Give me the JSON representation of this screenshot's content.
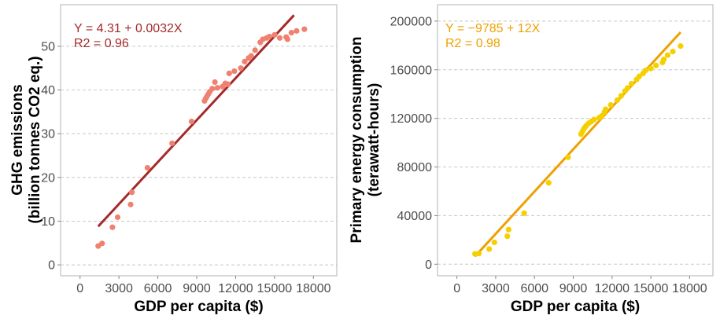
{
  "chart_data": [
    {
      "type": "scatter",
      "xlabel": "GDP per capita ($)",
      "ylabel": [
        "GHG emissions",
        "(billion tonnes CO2 eq.)"
      ],
      "xlim": [
        -1500,
        19800
      ],
      "ylim": [
        -2.5,
        59.5
      ],
      "xticks": [
        0,
        3000,
        6000,
        9000,
        12000,
        15000,
        18000
      ],
      "xtick_labels": [
        "0",
        "3000",
        "6000",
        "9000",
        "12000",
        "15000",
        "18000"
      ],
      "yticks": [
        0,
        10,
        20,
        30,
        40,
        50
      ],
      "ytick_labels": [
        "0",
        "10",
        "20",
        "30",
        "40",
        "50"
      ],
      "grid": "horizontal-dashed",
      "point_color": "#F08070",
      "line_color": "#A52A2A",
      "equation": "Y = 4.31 + 0.0032X",
      "r2": "R2 = 0.96",
      "fit": {
        "intercept": 4.31,
        "slope": 0.0032,
        "x_range": [
          1400,
          16500
        ]
      },
      "points": [
        [
          1400,
          4.3
        ],
        [
          1700,
          4.9
        ],
        [
          2500,
          8.6
        ],
        [
          2900,
          10.9
        ],
        [
          3900,
          13.8
        ],
        [
          4000,
          16.6
        ],
        [
          5200,
          22.2
        ],
        [
          7100,
          27.8
        ],
        [
          8600,
          32.8
        ],
        [
          9600,
          37.5
        ],
        [
          9700,
          38.1
        ],
        [
          9800,
          38.6
        ],
        [
          9900,
          39.1
        ],
        [
          10000,
          39.6
        ],
        [
          10200,
          40.3
        ],
        [
          10400,
          41.8
        ],
        [
          10600,
          40.5
        ],
        [
          11000,
          40.8
        ],
        [
          11200,
          41.5
        ],
        [
          11400,
          41.3
        ],
        [
          11500,
          43.8
        ],
        [
          11900,
          44.3
        ],
        [
          12400,
          45.0
        ],
        [
          12700,
          46.5
        ],
        [
          13000,
          47.3
        ],
        [
          13200,
          47.8
        ],
        [
          13500,
          49.1
        ],
        [
          13900,
          50.9
        ],
        [
          14100,
          51.6
        ],
        [
          14400,
          51.9
        ],
        [
          14600,
          52.2
        ],
        [
          15000,
          52.6
        ],
        [
          15400,
          51.9
        ],
        [
          15900,
          52.1
        ],
        [
          16000,
          51.6
        ],
        [
          16300,
          53.1
        ],
        [
          16700,
          53.5
        ],
        [
          17300,
          53.9
        ]
      ]
    },
    {
      "type": "scatter",
      "xlabel": "GDP per capita ($)",
      "ylabel": [
        "Primary energy consumption",
        "(terawatt-hours)"
      ],
      "xlim": [
        -1500,
        19800
      ],
      "ylim": [
        -9500,
        213500
      ],
      "xticks": [
        0,
        3000,
        6000,
        9000,
        12000,
        15000,
        18000
      ],
      "xtick_labels": [
        "0",
        "3000",
        "6000",
        "9000",
        "12000",
        "15000",
        "18000"
      ],
      "yticks": [
        0,
        40000,
        80000,
        120000,
        160000,
        200000
      ],
      "ytick_labels": [
        "0",
        "40000",
        "80000",
        "120000",
        "160000",
        "200000"
      ],
      "grid": "horizontal-dashed",
      "point_color": "#F5D000",
      "line_color": "#EFA000",
      "equation": "Y = −9785 + 12X",
      "r2": "R2 = 0.98",
      "fit": {
        "intercept": -9785,
        "slope": 11.6,
        "x_range": [
          1400,
          17300
        ]
      },
      "points": [
        [
          1400,
          8500
        ],
        [
          1700,
          8800
        ],
        [
          2500,
          12500
        ],
        [
          2900,
          18000
        ],
        [
          3900,
          23000
        ],
        [
          4000,
          28500
        ],
        [
          5200,
          42000
        ],
        [
          7100,
          67000
        ],
        [
          8600,
          88000
        ],
        [
          9600,
          107000
        ],
        [
          9700,
          109000
        ],
        [
          9800,
          111000
        ],
        [
          9900,
          112500
        ],
        [
          10000,
          114000
        ],
        [
          10200,
          116000
        ],
        [
          10400,
          117500
        ],
        [
          10600,
          119000
        ],
        [
          11000,
          120500
        ],
        [
          11200,
          122000
        ],
        [
          11400,
          125000
        ],
        [
          11500,
          127500
        ],
        [
          11900,
          131000
        ],
        [
          12400,
          135000
        ],
        [
          12700,
          138500
        ],
        [
          13000,
          142500
        ],
        [
          13200,
          145000
        ],
        [
          13500,
          148500
        ],
        [
          13900,
          152000
        ],
        [
          14100,
          154500
        ],
        [
          14400,
          157000
        ],
        [
          14600,
          159500
        ],
        [
          15000,
          161000
        ],
        [
          15400,
          163500
        ],
        [
          15900,
          166000
        ],
        [
          16000,
          168500
        ],
        [
          16300,
          172000
        ],
        [
          16700,
          175000
        ],
        [
          17300,
          179500
        ]
      ]
    }
  ]
}
